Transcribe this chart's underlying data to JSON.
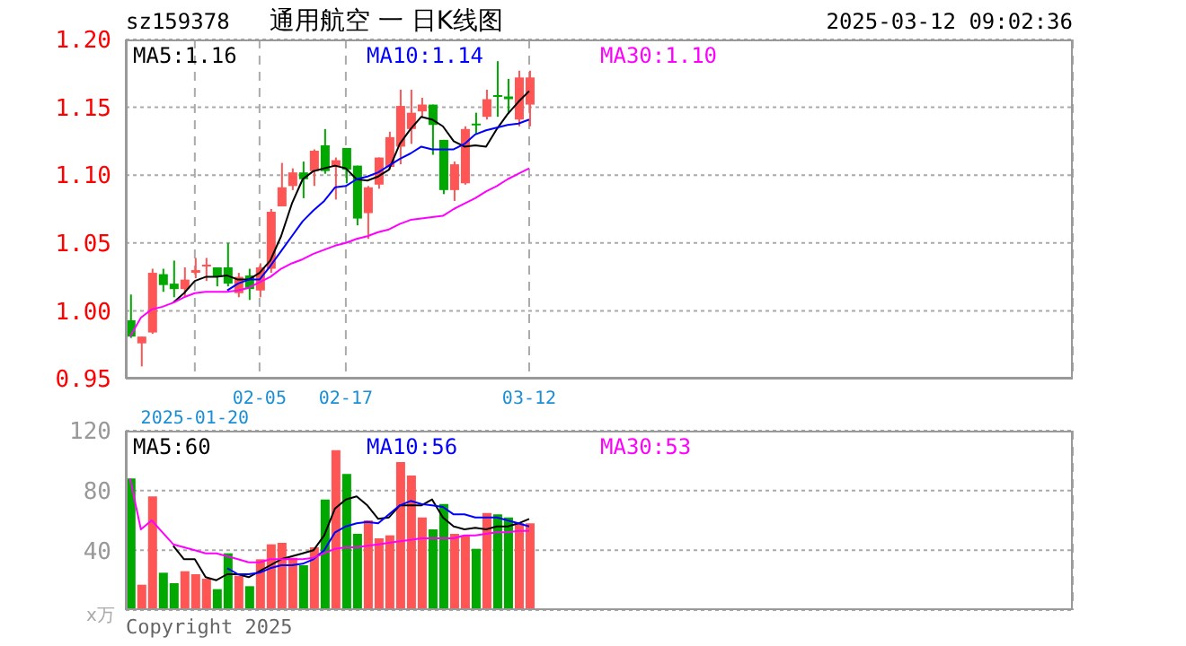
{
  "chart_data": [
    {
      "type": "candlestick",
      "title": "通用航空 一 日K线图",
      "subtitle": "sz159378",
      "annotations": [
        "2025-03-12 09:02:36"
      ],
      "categories": [
        null,
        null,
        null,
        null,
        null,
        null,
        "2025-01-20",
        null,
        null,
        null,
        null,
        null,
        "02-05",
        null,
        null,
        null,
        null,
        null,
        null,
        null,
        "02-17",
        null,
        null,
        null,
        null,
        null,
        null,
        null,
        null,
        null,
        null,
        null,
        null,
        null,
        null,
        null,
        null,
        "03-12"
      ],
      "ohlc": [
        [
          0.993,
          1.012,
          0.98,
          0.981
        ],
        [
          0.976,
          0.981,
          0.959,
          0.981
        ],
        [
          0.984,
          1.031,
          0.983,
          1.028
        ],
        [
          1.027,
          1.031,
          1.014,
          1.019
        ],
        [
          1.02,
          1.037,
          1.01,
          1.016
        ],
        [
          1.016,
          1.032,
          1.01,
          1.023
        ],
        [
          1.028,
          1.039,
          1.024,
          1.03
        ],
        [
          1.033,
          1.039,
          1.022,
          1.034
        ],
        [
          1.032,
          1.032,
          1.018,
          1.025
        ],
        [
          1.032,
          1.05,
          1.018,
          1.02
        ],
        [
          1.013,
          1.028,
          1.01,
          1.025
        ],
        [
          1.026,
          1.031,
          1.008,
          1.016
        ],
        [
          1.015,
          1.035,
          1.01,
          1.032
        ],
        [
          1.031,
          1.075,
          1.028,
          1.073
        ],
        [
          1.077,
          1.109,
          1.077,
          1.091
        ],
        [
          1.092,
          1.105,
          1.089,
          1.102
        ],
        [
          1.102,
          1.11,
          1.083,
          1.097
        ],
        [
          1.103,
          1.119,
          1.092,
          1.118
        ],
        [
          1.122,
          1.134,
          1.101,
          1.103
        ],
        [
          1.106,
          1.113,
          1.082,
          1.111
        ],
        [
          1.12,
          1.12,
          1.094,
          1.104
        ],
        [
          1.107,
          1.107,
          1.063,
          1.068
        ],
        [
          1.072,
          1.092,
          1.053,
          1.091
        ],
        [
          1.093,
          1.113,
          1.09,
          1.113
        ],
        [
          1.106,
          1.132,
          1.104,
          1.128
        ],
        [
          1.121,
          1.163,
          1.108,
          1.151
        ],
        [
          1.134,
          1.163,
          1.123,
          1.146
        ],
        [
          1.147,
          1.157,
          1.143,
          1.152
        ],
        [
          1.152,
          1.152,
          1.115,
          1.137
        ],
        [
          1.126,
          1.126,
          1.086,
          1.089
        ],
        [
          1.089,
          1.11,
          1.081,
          1.108
        ],
        [
          1.094,
          1.136,
          1.093,
          1.134
        ],
        [
          1.138,
          1.146,
          1.13,
          1.137
        ],
        [
          1.143,
          1.163,
          1.141,
          1.156
        ],
        [
          1.159,
          1.184,
          1.143,
          1.158
        ],
        [
          1.158,
          1.171,
          1.145,
          1.156
        ],
        [
          1.141,
          1.177,
          1.136,
          1.172
        ],
        [
          1.152,
          1.177,
          1.136,
          1.172
        ]
      ],
      "colors": [
        "#00a800",
        "#ff5555",
        "#ff5555",
        "#00a800",
        "#00a800",
        "#ff5555",
        "#ff5555",
        "#ff5555",
        "#00a800",
        "#00a800",
        "#ff5555",
        "#00a800",
        "#ff5555",
        "#ff5555",
        "#ff5555",
        "#ff5555",
        "#00a800",
        "#ff5555",
        "#00a800",
        "#ff5555",
        "#00a800",
        "#00a800",
        "#ff5555",
        "#ff5555",
        "#ff5555",
        "#ff5555",
        "#ff5555",
        "#ff5555",
        "#00a800",
        "#00a800",
        "#ff5555",
        "#ff5555",
        "#00a800",
        "#ff5555",
        "#00a800",
        "#00a800",
        "#ff5555",
        "#ff5555"
      ],
      "series": [
        {
          "type": "line",
          "name": "MA5:1.16",
          "color": "#000000",
          "values": [
            null,
            null,
            null,
            null,
            1.006,
            1.013,
            1.022,
            1.025,
            1.025,
            1.026,
            1.023,
            1.023,
            1.028,
            1.037,
            1.055,
            1.079,
            1.097,
            1.103,
            1.105,
            1.107,
            1.105,
            1.097,
            1.096,
            1.099,
            1.104,
            1.123,
            1.134,
            1.143,
            1.141,
            1.136,
            1.125,
            1.121,
            1.122,
            1.121,
            1.134,
            1.145,
            1.154,
            1.162
          ]
        },
        {
          "type": "line",
          "name": "MA10:1.14",
          "color": "#0000ff",
          "values": [
            null,
            null,
            null,
            null,
            null,
            null,
            null,
            null,
            null,
            1.015,
            1.02,
            1.023,
            1.023,
            1.033,
            1.044,
            1.055,
            1.066,
            1.074,
            1.081,
            1.091,
            1.092,
            1.097,
            1.099,
            1.102,
            1.107,
            1.112,
            1.116,
            1.121,
            1.119,
            1.119,
            1.119,
            1.123,
            1.13,
            1.133,
            1.135,
            1.137,
            1.138,
            1.141
          ]
        },
        {
          "type": "line",
          "name": "MA30:1.10",
          "color": "#ff00ff",
          "values": [
            0.981,
            0.995,
            1.001,
            1.003,
            1.006,
            1.01,
            1.013,
            1.014,
            1.014,
            1.014,
            1.015,
            1.017,
            1.021,
            1.025,
            1.031,
            1.035,
            1.038,
            1.042,
            1.045,
            1.048,
            1.05,
            1.053,
            1.055,
            1.058,
            1.06,
            1.064,
            1.067,
            1.068,
            1.069,
            1.07,
            1.075,
            1.079,
            1.083,
            1.088,
            1.092,
            1.097,
            1.101,
            1.105
          ]
        }
      ],
      "ylim": [
        0.95,
        1.2
      ],
      "yticks": [
        0.95,
        {
          "value": 1,
          "label": "1.00"
        },
        1.05,
        {
          "value": 1.1,
          "label": "1.10"
        },
        1.15,
        {
          "value": 1.2,
          "label": "1.20"
        }
      ],
      "grid": true,
      "legend": "top"
    },
    {
      "type": "bar",
      "annotations": [
        "x万",
        "Copyright 2025"
      ],
      "categories": [
        null,
        null,
        null,
        null,
        null,
        null,
        null,
        null,
        null,
        null,
        null,
        null,
        null,
        null,
        null,
        null,
        null,
        null,
        null,
        null,
        null,
        null,
        null,
        null,
        null,
        null,
        null,
        null,
        null,
        null,
        null,
        null,
        null,
        null,
        null,
        null,
        null,
        null
      ],
      "series": [
        {
          "type": "bar",
          "values": [
            88,
            17,
            76,
            25,
            18,
            26,
            24,
            21,
            14,
            38,
            23,
            16,
            34,
            44,
            45,
            35,
            30,
            42,
            74,
            107,
            91,
            51,
            60,
            48,
            50,
            99,
            90,
            62,
            54,
            71,
            51,
            50,
            41,
            65,
            64,
            62,
            58,
            58
          ],
          "colors": [
            "#00a800",
            "#ff5555",
            "#ff5555",
            "#00a800",
            "#00a800",
            "#ff5555",
            "#ff5555",
            "#ff5555",
            "#00a800",
            "#00a800",
            "#ff5555",
            "#00a800",
            "#ff5555",
            "#ff5555",
            "#ff5555",
            "#ff5555",
            "#00a800",
            "#ff5555",
            "#00a800",
            "#ff5555",
            "#00a800",
            "#00a800",
            "#ff5555",
            "#ff5555",
            "#ff5555",
            "#ff5555",
            "#ff5555",
            "#ff5555",
            "#00a800",
            "#00a800",
            "#ff5555",
            "#ff5555",
            "#00a800",
            "#ff5555",
            "#00a800",
            "#00a800",
            "#ff5555",
            "#ff5555"
          ]
        },
        {
          "type": "line",
          "name": "MA5:60",
          "color": "#000000",
          "values": [
            null,
            null,
            null,
            null,
            43,
            34,
            34,
            22,
            20,
            24,
            24,
            22,
            26,
            30,
            34,
            36,
            38,
            40,
            50,
            68,
            74,
            76,
            70,
            61,
            62,
            70,
            70,
            70,
            74,
            62,
            56,
            54,
            55,
            54,
            56,
            56,
            58,
            61
          ]
        },
        {
          "type": "line",
          "name": "MA10:56",
          "color": "#0000ff",
          "values": [
            null,
            null,
            null,
            null,
            null,
            null,
            null,
            null,
            null,
            28,
            24,
            24,
            25,
            28,
            30,
            30,
            31,
            34,
            40,
            52,
            56,
            58,
            59,
            58,
            64,
            70,
            73,
            71,
            70,
            69,
            64,
            64,
            62,
            62,
            62,
            60,
            58,
            56
          ]
        },
        {
          "type": "line",
          "name": "MA30:53",
          "color": "#ff00ff",
          "values": [
            88,
            54,
            60,
            52,
            44,
            42,
            40,
            38,
            38,
            36,
            34,
            32,
            32,
            34,
            34,
            34,
            34,
            35,
            38,
            41,
            42,
            42,
            43,
            44,
            45,
            46,
            47,
            48,
            48,
            48,
            48,
            50,
            50,
            51,
            52,
            52,
            53,
            53
          ]
        }
      ],
      "ylim": [
        0,
        120
      ],
      "yticks": [
        40,
        80,
        120
      ],
      "tick_labels": "y",
      "grid": true,
      "legend": "top"
    }
  ]
}
